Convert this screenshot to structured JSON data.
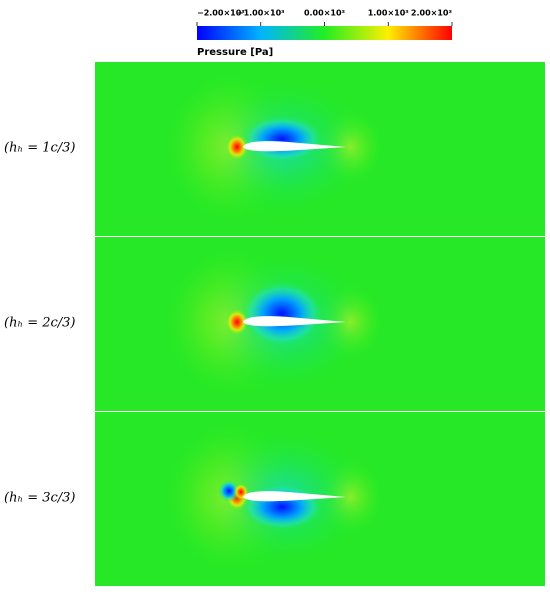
{
  "colorbar": {
    "title": "Pressure [Pa]",
    "lim": [
      -2000,
      2000
    ],
    "ticks": [
      {
        "value": -2000,
        "label": "−2.00×10³"
      },
      {
        "value": -1000,
        "label": "−1.00×10³"
      },
      {
        "value": 0,
        "label": "0.00×10³"
      },
      {
        "value": 1000,
        "label": "1.00×10³"
      },
      {
        "value": 2000,
        "label": "2.00×10³"
      }
    ]
  },
  "panels": [
    {
      "label": "(hₕ = 1c/3)"
    },
    {
      "label": "(hₕ = 2c/3)"
    },
    {
      "label": "(hₕ = 3c/3)"
    }
  ]
}
